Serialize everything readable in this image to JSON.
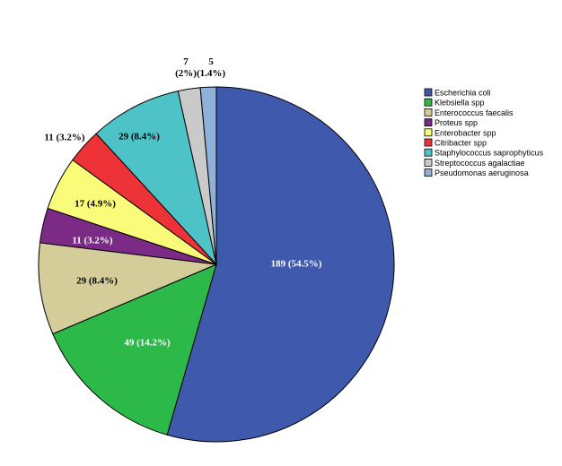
{
  "chart_data": {
    "type": "pie",
    "title": "",
    "start_angle_deg": 0,
    "direction": "clockwise",
    "legend_position": "top-right",
    "slices": [
      {
        "name": "Escherichia coli",
        "value": 189,
        "percent": "54.5%",
        "label": "189 (54.5%)",
        "color": "#3F59AD",
        "label_color": "#ffffff"
      },
      {
        "name": "Klebsiella spp",
        "value": 49,
        "percent": "14.2%",
        "label": "49 (14.2%)",
        "color": "#2DB84A",
        "label_color": "#ffffff"
      },
      {
        "name": "Enterococcus faecalis",
        "value": 29,
        "percent": "8.4%",
        "label": "29 (8.4%)",
        "color": "#D4CD9A",
        "label_color": "#000000"
      },
      {
        "name": "Proteus spp",
        "value": 11,
        "percent": "3.2%",
        "label": "11 (3.2%)",
        "color": "#7B2A85",
        "label_color": "#ffffff"
      },
      {
        "name": "Enterobacter spp",
        "value": 17,
        "percent": "4.9%",
        "label": "17 (4.9%)",
        "color": "#FBFB7A",
        "label_color": "#000000"
      },
      {
        "name": "Citribacter spp",
        "value": 11,
        "percent": "3.2%",
        "label": "11 (3.2%)",
        "color": "#EE3338",
        "label_color": "#000000"
      },
      {
        "name": "Staphylococcus saprophyticus",
        "value": 29,
        "percent": "8.4%",
        "label": "29 (8.4%)",
        "color": "#4DC3C8",
        "label_color": "#000000"
      },
      {
        "name": "Streptococcus agalactiae",
        "value": 7,
        "percent": "2%",
        "label": "7 (2%)",
        "label_lines": [
          "7",
          "(2%)"
        ],
        "color": "#CACACA",
        "label_color": "#000000"
      },
      {
        "name": "Pseudomonas aeruginosa",
        "value": 5,
        "percent": "1.4%",
        "label": "5 (1.4%)",
        "label_lines": [
          "5",
          "(1.4%)"
        ],
        "color": "#8DB1D9",
        "label_color": "#000000"
      }
    ]
  }
}
